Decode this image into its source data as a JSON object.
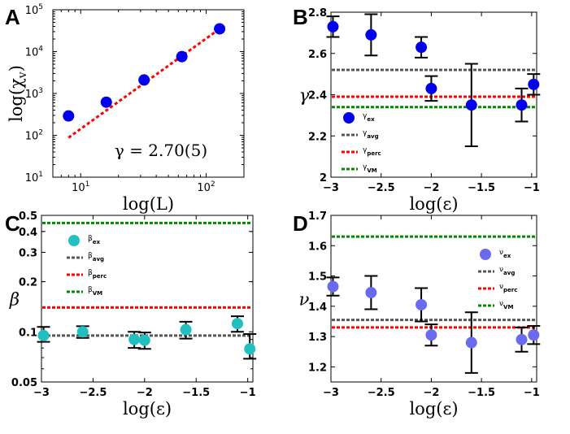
{
  "chart_data": [
    {
      "panel": "A",
      "type": "scatter",
      "xscale": "log",
      "yscale": "log",
      "xlabel": "log(L)",
      "ylabel": "log(χ_v)",
      "xlim": [
        6,
        200
      ],
      "ylim": [
        10,
        100000
      ],
      "x_ticks": [
        {
          "v": 10,
          "label": "10",
          "exp": "1"
        },
        {
          "v": 100,
          "label": "10",
          "exp": "2"
        }
      ],
      "y_ticks": [
        {
          "v": 10,
          "label": "10",
          "exp": "1"
        },
        {
          "v": 100,
          "label": "10",
          "exp": "2"
        },
        {
          "v": 1000,
          "label": "10",
          "exp": "3"
        },
        {
          "v": 10000,
          "label": "10",
          "exp": "4"
        },
        {
          "v": 100000,
          "label": "10",
          "exp": "5"
        }
      ],
      "points": {
        "x": [
          8,
          16,
          32,
          64,
          128
        ],
        "y": [
          290,
          620,
          2100,
          7600,
          35000
        ],
        "color": "#0000ee"
      },
      "fit_line": {
        "x": [
          8,
          128
        ],
        "y": [
          88,
          35000
        ],
        "color": "#ff0000",
        "style": "dotted"
      },
      "annotation": "γ = 2.70(5)"
    },
    {
      "panel": "B",
      "type": "scatter",
      "xlabel": "log(ε)",
      "ylabel": "γ",
      "xlim": [
        -3,
        -0.95
      ],
      "ylim": [
        2,
        2.8
      ],
      "x_ticks": [
        {
          "v": -3,
          "label": "−3"
        },
        {
          "v": -2.5,
          "label": "−2.5"
        },
        {
          "v": -2,
          "label": "−2"
        },
        {
          "v": -1.5,
          "label": "−1.5"
        },
        {
          "v": -1,
          "label": "−1"
        }
      ],
      "y_ticks": [
        {
          "v": 2,
          "label": "2"
        },
        {
          "v": 2.2,
          "label": "2.2"
        },
        {
          "v": 2.4,
          "label": "2.4"
        },
        {
          "v": 2.6,
          "label": "2.6"
        },
        {
          "v": 2.8,
          "label": "2.8"
        }
      ],
      "points": {
        "x": [
          -2.98,
          -2.6,
          -2.1,
          -2.0,
          -1.6,
          -1.1,
          -0.98
        ],
        "y": [
          2.73,
          2.69,
          2.63,
          2.43,
          2.35,
          2.35,
          2.45
        ],
        "err": [
          0.05,
          0.1,
          0.05,
          0.06,
          0.2,
          0.08,
          0.05
        ],
        "color": "#0000ee"
      },
      "hlines": [
        {
          "y": 2.52,
          "color": "#555555"
        },
        {
          "y": 2.39,
          "color": "#ff0000"
        },
        {
          "y": 2.34,
          "color": "#008800"
        }
      ],
      "legend": [
        {
          "base": "γ",
          "sub": "ex",
          "kind": "marker",
          "color": "#0000ee"
        },
        {
          "base": "γ",
          "sub": "avg",
          "kind": "line",
          "color": "#555555"
        },
        {
          "base": "γ",
          "sub": "perc",
          "kind": "line",
          "color": "#ff0000"
        },
        {
          "base": "γ",
          "sub": "VM",
          "kind": "line",
          "color": "#008800"
        }
      ]
    },
    {
      "panel": "C",
      "type": "scatter",
      "xscale": "linear",
      "yscale": "log",
      "xlabel": "log(ε)",
      "ylabel": "β",
      "xlim": [
        -3,
        -0.95
      ],
      "ylim": [
        0.05,
        0.5
      ],
      "x_ticks": [
        {
          "v": -3,
          "label": "−3"
        },
        {
          "v": -2.5,
          "label": "−2.5"
        },
        {
          "v": -2,
          "label": "−2"
        },
        {
          "v": -1.5,
          "label": "−1.5"
        },
        {
          "v": -1,
          "label": "−1"
        }
      ],
      "y_ticks": [
        {
          "v": 0.05,
          "label": "0.05"
        },
        {
          "v": 0.1,
          "label": "0.1"
        },
        {
          "v": 0.2,
          "label": "0.2"
        },
        {
          "v": 0.3,
          "label": "0.3"
        },
        {
          "v": 0.4,
          "label": "0.4"
        },
        {
          "v": 0.5,
          "label": "0.5"
        }
      ],
      "points": {
        "x": [
          -2.98,
          -2.6,
          -2.1,
          -2.0,
          -1.6,
          -1.1,
          -0.98
        ],
        "y": [
          0.095,
          0.1,
          0.09,
          0.089,
          0.103,
          0.112,
          0.079
        ],
        "err_lo": [
          0.008,
          0.008,
          0.01,
          0.01,
          0.012,
          0.012,
          0.01
        ],
        "err_hi": [
          0.012,
          0.008,
          0.01,
          0.01,
          0.012,
          0.012,
          0.018
        ],
        "color": "#20c0c0"
      },
      "hlines": [
        {
          "y": 0.095,
          "color": "#555555"
        },
        {
          "y": 0.14,
          "color": "#ff0000"
        },
        {
          "y": 0.45,
          "color": "#008800"
        }
      ],
      "legend": [
        {
          "base": "β",
          "sub": "ex",
          "kind": "marker",
          "color": "#20c0c0"
        },
        {
          "base": "β",
          "sub": "avg",
          "kind": "line",
          "color": "#555555"
        },
        {
          "base": "β",
          "sub": "perc",
          "kind": "line",
          "color": "#ff0000"
        },
        {
          "base": "β",
          "sub": "VM",
          "kind": "line",
          "color": "#008800"
        }
      ]
    },
    {
      "panel": "D",
      "type": "scatter",
      "xlabel": "log(ε)",
      "ylabel": "ν",
      "xlim": [
        -3,
        -0.95
      ],
      "ylim": [
        1.15,
        1.7
      ],
      "x_ticks": [
        {
          "v": -3,
          "label": "−3"
        },
        {
          "v": -2.5,
          "label": "−2.5"
        },
        {
          "v": -2,
          "label": "−2"
        },
        {
          "v": -1.5,
          "label": "−1.5"
        },
        {
          "v": -1,
          "label": "−1"
        }
      ],
      "y_ticks": [
        {
          "v": 1.2,
          "label": "1.2"
        },
        {
          "v": 1.3,
          "label": "1.3"
        },
        {
          "v": 1.4,
          "label": "1.4"
        },
        {
          "v": 1.5,
          "label": "1.5"
        },
        {
          "v": 1.6,
          "label": "1.6"
        },
        {
          "v": 1.7,
          "label": "1.7"
        }
      ],
      "points": {
        "x": [
          -2.98,
          -2.6,
          -2.1,
          -2.0,
          -1.6,
          -1.1,
          -0.98
        ],
        "y": [
          1.465,
          1.445,
          1.405,
          1.305,
          1.28,
          1.29,
          1.305
        ],
        "err": [
          0.03,
          0.055,
          0.055,
          0.035,
          0.1,
          0.04,
          0.03
        ],
        "color": "#6a6aee"
      },
      "hlines": [
        {
          "y": 1.355,
          "color": "#555555"
        },
        {
          "y": 1.33,
          "color": "#ff0000"
        },
        {
          "y": 1.63,
          "color": "#008800"
        }
      ],
      "legend": [
        {
          "base": "ν",
          "sub": "ex",
          "kind": "marker",
          "color": "#6a6aee"
        },
        {
          "base": "ν",
          "sub": "avg",
          "kind": "line",
          "color": "#555555"
        },
        {
          "base": "ν",
          "sub": "perc",
          "kind": "line",
          "color": "#ff0000"
        },
        {
          "base": "ν",
          "sub": "VM",
          "kind": "line",
          "color": "#008800"
        }
      ]
    }
  ]
}
